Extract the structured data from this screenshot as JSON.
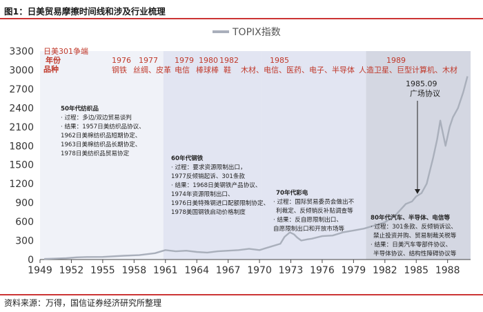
{
  "figure": {
    "title": "图1：日美贸易摩擦时间线和涉及行业梳理",
    "source": "资料来源：万得，国信证券经济研究所整理"
  },
  "colors": {
    "accent_red": "#c0392b",
    "line_gray": "#a9afbb",
    "band_light": "#e6e9f4",
    "band_mid": "#d8dcee",
    "band_dark": "#c6cad8",
    "rule_red": "#cc3333"
  },
  "chart_data": {
    "type": "line",
    "title": "TOPIX指数",
    "legend": "TOPIX指数",
    "xlabel": "",
    "ylabel": "",
    "xlim": [
      1949,
      1990.2
    ],
    "ylim": [
      0,
      3300
    ],
    "yticks": [
      0,
      300,
      600,
      900,
      1200,
      1500,
      1800,
      2100,
      2400,
      2700,
      3000,
      3300
    ],
    "xticks": [
      1949,
      1952,
      1955,
      1958,
      1961,
      1964,
      1967,
      1970,
      1973,
      1976,
      1979,
      1982,
      1985,
      1988
    ],
    "series": [
      {
        "name": "TOPIX指数",
        "x": [
          1949.4,
          1950.5,
          1951.5,
          1952.5,
          1953.5,
          1955,
          1957,
          1958.5,
          1960,
          1961,
          1962,
          1963,
          1964,
          1965,
          1966,
          1967,
          1968,
          1969,
          1970,
          1971,
          1972,
          1972.4,
          1972.9,
          1973.3,
          1973.6,
          1974,
          1974.6,
          1975,
          1976,
          1977,
          1978,
          1979,
          1980,
          1981,
          1982,
          1983,
          1984,
          1984.6,
          1985,
          1985.5,
          1986,
          1986.3,
          1986.6,
          1987,
          1987.3,
          1987.8,
          1988.2,
          1988.5,
          1989,
          1989.5,
          1989.9
        ],
        "values": [
          10,
          15,
          22,
          35,
          40,
          42,
          60,
          70,
          100,
          150,
          130,
          140,
          120,
          110,
          130,
          140,
          150,
          170,
          150,
          200,
          250,
          360,
          430,
          400,
          350,
          300,
          320,
          330,
          370,
          380,
          430,
          460,
          490,
          540,
          590,
          700,
          880,
          920,
          1000,
          1050,
          1200,
          1400,
          1600,
          1900,
          2200,
          1800,
          2100,
          2250,
          2400,
          2650,
          2900
        ]
      }
    ],
    "event_bands": [
      {
        "from": 1949,
        "to": 1960.8,
        "tone": "light"
      },
      {
        "from": 1960.8,
        "to": 1970.2,
        "tone": "mid"
      },
      {
        "from": 1970.2,
        "to": 1980.2,
        "tone": "mid"
      },
      {
        "from": 1980.2,
        "to": 1990.2,
        "tone": "dark"
      }
    ],
    "annotations": {
      "header": [
        "日美301争端",
        "年份",
        "品种"
      ],
      "years": [
        "1976",
        "1977",
        "1979",
        "1980",
        "1982",
        "1985",
        "1989"
      ],
      "products": [
        "钢铁",
        "丝绸、皮革",
        "电信",
        "棒球棒",
        "鞋",
        "木材、电信、医药、电子、半导体",
        "人造卫星、巨型计算机、木材"
      ],
      "plaza_year": "1985.09",
      "plaza_label": "广场协议",
      "boxes": [
        {
          "title": "50年代纺织品",
          "lines": [
            "· 过程：多边/双边贸易谈判",
            "· 结果：1957日美纺织品协议、",
            "1962日美棉纺织品短期协定、",
            "1963日美棉纺织品长期协定、",
            "1978日美纺织品贸易协定"
          ]
        },
        {
          "title": "60年代钢铁",
          "lines": [
            "· 过程：要求资源限制出口，",
            "1977反倾销起诉、301条款",
            "· 结果：1968日美钢铁产品协议、",
            "1974年资源限制出口、",
            "1976日美特殊钢进口配额限制协定、",
            "1978美国钢铁启动价格制度"
          ]
        },
        {
          "title": "70年代彩电",
          "lines": [
            "· 过程：国际贸易委员会做出不",
            "利裁定、反倾销反补贴调查等",
            "· 结果：反自愿限制出口、",
            "自愿限制出口和开放市场等"
          ]
        },
        {
          "title": "80年代汽车、半导体、电信等",
          "lines": [
            "· 过程：301条款、反倾销诉讼、",
            "禁止投资并购、贸易制裁关税等",
            "· 结果：日美汽车零部件协议、",
            "半导体协议、结构性障碍协议等"
          ]
        }
      ]
    }
  }
}
